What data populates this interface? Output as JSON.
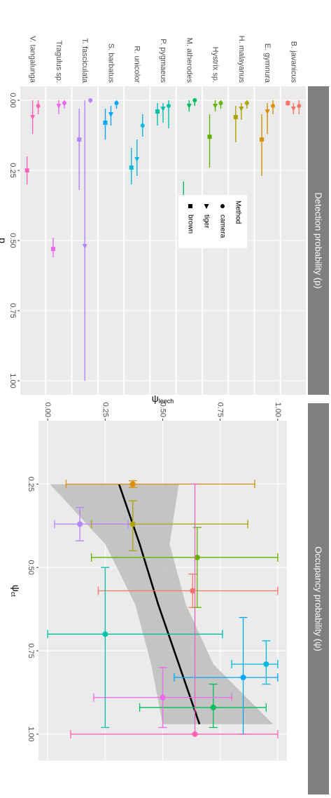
{
  "chart_data": [
    {
      "type": "dot-interval",
      "title": "Detection probability (p)",
      "species": [
        "B. javanicus",
        "E. gymnura",
        "H. malayanus",
        "Hystrix sp.",
        "M. atherodes",
        "P. pygmaeus",
        "R. unicolor",
        "S. barbatus",
        "T. fasciculata",
        "Tragulus sp.",
        "V. tangalunga"
      ],
      "colors": [
        "#F8766D",
        "#DB8E00",
        "#AEA200",
        "#64B200",
        "#00BD5C",
        "#00C1A7",
        "#00BADE",
        "#00A6FF",
        "#B385FF",
        "#EF67EB",
        "#FF63B6"
      ],
      "legend_title": "Method",
      "methods": [
        {
          "name": "camera",
          "shape": "circle",
          "values": [
            0.02,
            0.02,
            0.01,
            0.01,
            0.0,
            0.02,
            0.09,
            0.01,
            0.0,
            0.01,
            0.02
          ],
          "lower": [
            0.0,
            0.0,
            0.0,
            0.0,
            0.0,
            0.0,
            0.05,
            0.0,
            0.0,
            0.0,
            0.0
          ],
          "upper": [
            0.05,
            0.05,
            0.03,
            0.03,
            0.02,
            0.1,
            0.13,
            0.03,
            0.01,
            0.03,
            0.05
          ]
        },
        {
          "name": "tiger",
          "shape": "triangle",
          "values": [
            0.03,
            0.04,
            0.03,
            0.02,
            0.02,
            0.03,
            0.21,
            0.05,
            0.52,
            0.02,
            0.06
          ],
          "lower": [
            0.01,
            0.01,
            0.01,
            0.0,
            0.0,
            0.01,
            0.14,
            0.02,
            0.0,
            0.0,
            0.0
          ],
          "upper": [
            0.05,
            0.12,
            0.07,
            0.04,
            0.04,
            0.08,
            0.27,
            0.09,
            1.0,
            0.05,
            0.12
          ]
        },
        {
          "name": "brown",
          "shape": "square",
          "values": [
            0.01,
            0.14,
            0.06,
            0.13,
            0.35,
            0.04,
            0.24,
            0.08,
            0.14,
            0.53,
            0.25
          ],
          "lower": [
            0.0,
            0.05,
            0.02,
            0.05,
            0.29,
            0.01,
            0.17,
            0.03,
            0.03,
            0.49,
            0.2
          ],
          "upper": [
            0.02,
            0.27,
            0.15,
            0.24,
            0.42,
            0.09,
            0.3,
            0.14,
            0.32,
            0.56,
            0.3
          ]
        }
      ],
      "xlim": [
        -0.05,
        1.05
      ],
      "xticks": [
        {
          "value": 0,
          "label": "0.00"
        },
        {
          "value": 0.25,
          "label": "0.25"
        },
        {
          "value": 0.5,
          "label": "0.50"
        },
        {
          "value": 0.75,
          "label": "0.75"
        },
        {
          "value": 1,
          "label": "1.00"
        }
      ],
      "x_label": "p",
      "grid": true
    },
    {
      "type": "scatter",
      "title": "Occupancy probability (ψ)",
      "colors": [
        "#F8766D",
        "#DB8E00",
        "#AEA200",
        "#64B200",
        "#00BD5C",
        "#00C1A7",
        "#00BADE",
        "#00A6FF",
        "#B385FF",
        "#EF67EB",
        "#FF63B6"
      ],
      "x": [
        0.57,
        0.25,
        0.37,
        0.47,
        0.92,
        0.7,
        0.79,
        0.83,
        0.37,
        0.89,
        1.0
      ],
      "y": [
        0.63,
        0.37,
        0.37,
        0.65,
        0.72,
        0.25,
        0.95,
        0.85,
        0.14,
        0.5,
        0.64
      ],
      "x_lower": [
        0.52,
        0.24,
        0.3,
        0.38,
        0.85,
        0.5,
        0.72,
        0.65,
        0.32,
        0.8,
        0.25
      ],
      "x_upper": [
        0.62,
        0.26,
        0.45,
        0.62,
        0.98,
        0.98,
        0.85,
        1.0,
        0.42,
        0.98,
        1.0
      ],
      "y_lower": [
        0.22,
        0.08,
        0.19,
        0.19,
        0.4,
        0.0,
        0.8,
        0.55,
        0.03,
        0.2,
        0.1
      ],
      "y_upper": [
        1.0,
        0.9,
        0.87,
        1.0,
        0.95,
        0.76,
        1.0,
        1.0,
        0.35,
        0.8,
        1.0
      ],
      "fit": {
        "x": [
          0.25,
          0.43,
          0.61,
          0.79,
          0.97
        ],
        "y": [
          0.31,
          0.4,
          0.48,
          0.57,
          0.66
        ],
        "lower": [
          0.01,
          0.25,
          0.38,
          0.45,
          0.5
        ],
        "upper": [
          0.57,
          0.53,
          0.6,
          0.72,
          0.98
        ],
        "color": "#000000",
        "band_color": "#bdbdbd"
      },
      "xlim": [
        0.06,
        1.08
      ],
      "ylim": [
        -0.04,
        1.04
      ],
      "xticks": [
        {
          "value": 0.25,
          "label": "0.25"
        },
        {
          "value": 0.5,
          "label": "0.50"
        },
        {
          "value": 0.75,
          "label": "0.75"
        },
        {
          "value": 1,
          "label": "1.00"
        }
      ],
      "yticks": [
        {
          "value": 0,
          "label": "0.00"
        },
        {
          "value": 0.25,
          "label": "0.25"
        },
        {
          "value": 0.5,
          "label": "0.50"
        },
        {
          "value": 0.75,
          "label": "0.75"
        },
        {
          "value": 1,
          "label": "1.00"
        }
      ],
      "x_label_symbol": "ψ",
      "x_label_sub": "ct",
      "y_label_symbol": "ψ",
      "y_label_sub": "leech",
      "grid": true
    }
  ]
}
